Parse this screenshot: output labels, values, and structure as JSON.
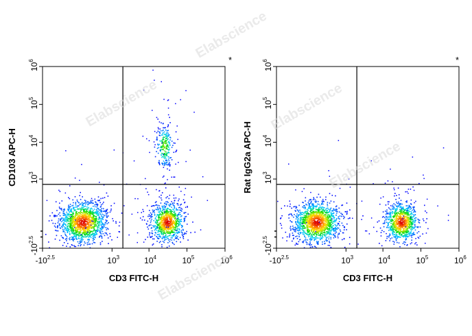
{
  "watermark": "Elabscience",
  "chart_data": [
    {
      "type": "scatter",
      "subtype": "flow-cytometry-density-dot-plot",
      "xlabel": "CD3 FITC-H",
      "ylabel": "CD103 APC-H",
      "corner_mark": "*",
      "x_scale": "biexponential",
      "y_scale": "biexponential",
      "xlim": [
        "-10^2.5",
        "10^6"
      ],
      "ylim": [
        "-10^2.5",
        "10^6"
      ],
      "x_ticks": [
        {
          "base": "-10",
          "exp": "2.5"
        },
        {
          "base": "10",
          "exp": "3"
        },
        {
          "base": "10",
          "exp": "4"
        },
        {
          "base": "10",
          "exp": "5"
        },
        {
          "base": "10",
          "exp": "6"
        }
      ],
      "y_ticks": [
        {
          "base": "-10",
          "exp": "2.5"
        },
        {
          "base": "10",
          "exp": "3"
        },
        {
          "base": "10",
          "exp": "4"
        },
        {
          "base": "10",
          "exp": "5"
        },
        {
          "base": "10",
          "exp": "6"
        }
      ],
      "quadrant_gate": {
        "x": 2000,
        "y": 700
      },
      "grid": false,
      "populations": [
        {
          "center_x": 100,
          "center_y": 0,
          "relative_size": "large",
          "density": "high"
        },
        {
          "center_x": 30000,
          "center_y": 0,
          "relative_size": "medium",
          "density": "high"
        },
        {
          "center_x": 25000,
          "center_y": 8000,
          "relative_size": "small",
          "density": "medium"
        }
      ]
    },
    {
      "type": "scatter",
      "subtype": "flow-cytometry-density-dot-plot",
      "xlabel": "CD3 FITC-H",
      "ylabel": "Rat IgG2a APC-H",
      "corner_mark": "*",
      "x_scale": "biexponential",
      "y_scale": "biexponential",
      "xlim": [
        "-10^2.5",
        "10^6"
      ],
      "ylim": [
        "-10^2.5",
        "10^6"
      ],
      "x_ticks": [
        {
          "base": "-10",
          "exp": "2.5"
        },
        {
          "base": "10",
          "exp": "3"
        },
        {
          "base": "10",
          "exp": "4"
        },
        {
          "base": "10",
          "exp": "5"
        },
        {
          "base": "10",
          "exp": "6"
        }
      ],
      "y_ticks": [
        {
          "base": "-10",
          "exp": "2.5"
        },
        {
          "base": "10",
          "exp": "3"
        },
        {
          "base": "10",
          "exp": "4"
        },
        {
          "base": "10",
          "exp": "5"
        },
        {
          "base": "10",
          "exp": "6"
        }
      ],
      "quadrant_gate": {
        "x": 2000,
        "y": 700
      },
      "grid": false,
      "populations": [
        {
          "center_x": 100,
          "center_y": 0,
          "relative_size": "large",
          "density": "high"
        },
        {
          "center_x": 30000,
          "center_y": 0,
          "relative_size": "medium",
          "density": "high"
        }
      ]
    }
  ]
}
